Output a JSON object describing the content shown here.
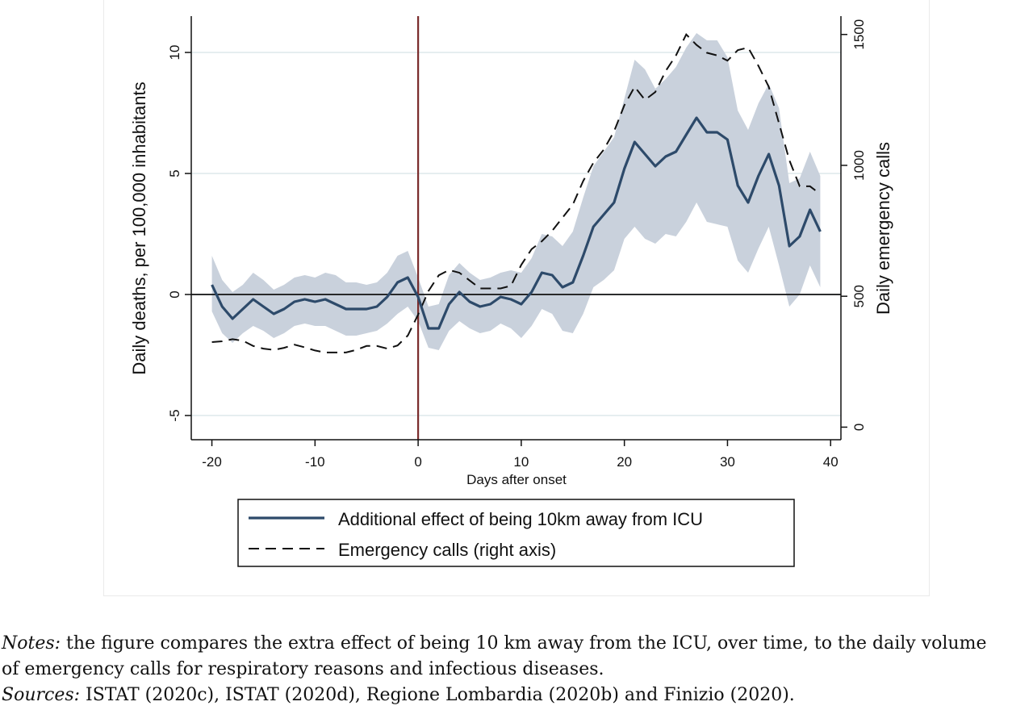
{
  "chart_data": {
    "type": "line",
    "xlabel": "Days after onset",
    "ylabel_left": "Daily deaths, per 100,000 inhabitants",
    "ylabel_right": "Daily emergency calls",
    "xlim": [
      -22,
      41
    ],
    "ylim_left": [
      -6,
      11.5
    ],
    "ylim_right": [
      -48,
      1570
    ],
    "x_ticks": [
      -20,
      -10,
      0,
      10,
      20,
      30,
      40
    ],
    "x_tick_labels": [
      "-20",
      "-10",
      "0",
      "10",
      "20",
      "30",
      "40"
    ],
    "y_left_ticks": [
      -5,
      0,
      5,
      10
    ],
    "y_left_tick_labels": [
      "-5",
      "0",
      "5",
      "10"
    ],
    "y_right_ticks": [
      0,
      500,
      1000,
      1500
    ],
    "y_right_tick_labels": [
      "0",
      "500",
      "1000",
      "1500"
    ],
    "grid": true,
    "vertical_line_at_x": 0,
    "horizontal_line_at_y": 0,
    "legend_position": "bottom",
    "legend": [
      "Additional effect of being 10km away from ICU",
      "Emergency calls (right axis)"
    ],
    "colors": {
      "effect_line": "#2d4a6a",
      "ci_band": "#c9d1dc",
      "calls_line": "#111111",
      "onset_line": "#7a2b2b",
      "grid": "#dde9ec"
    },
    "series": [
      {
        "name": "Additional effect of being 10km away from ICU",
        "axis": "left",
        "style": "solid",
        "x": [
          -20,
          -19,
          -18,
          -17,
          -16,
          -15,
          -14,
          -13,
          -12,
          -11,
          -10,
          -9,
          -8,
          -7,
          -6,
          -5,
          -4,
          -3,
          -2,
          -1,
          0,
          1,
          2,
          3,
          4,
          5,
          6,
          7,
          8,
          9,
          10,
          11,
          12,
          13,
          14,
          15,
          16,
          17,
          18,
          19,
          20,
          21,
          22,
          23,
          24,
          25,
          26,
          27,
          28,
          29,
          30,
          31,
          32,
          33,
          34,
          35,
          36,
          37,
          38,
          39
        ],
        "values": [
          0.4,
          -0.5,
          -1.0,
          -0.6,
          -0.2,
          -0.5,
          -0.8,
          -0.6,
          -0.3,
          -0.2,
          -0.3,
          -0.2,
          -0.4,
          -0.6,
          -0.6,
          -0.6,
          -0.5,
          -0.1,
          0.5,
          0.7,
          -0.1,
          -1.4,
          -1.4,
          -0.4,
          0.1,
          -0.3,
          -0.5,
          -0.4,
          -0.1,
          -0.2,
          -0.4,
          0.1,
          0.9,
          0.8,
          0.3,
          0.5,
          1.6,
          2.8,
          3.3,
          3.8,
          5.2,
          6.3,
          5.8,
          5.3,
          5.7,
          5.9,
          6.6,
          7.3,
          6.7,
          6.7,
          6.4,
          4.5,
          3.8,
          4.9,
          5.8,
          4.5,
          2.0,
          2.4,
          3.5,
          2.6
        ],
        "ci_lower": [
          -0.7,
          -1.6,
          -2.0,
          -1.6,
          -1.3,
          -1.5,
          -1.8,
          -1.6,
          -1.3,
          -1.2,
          -1.3,
          -1.3,
          -1.5,
          -1.7,
          -1.7,
          -1.6,
          -1.5,
          -1.2,
          -0.8,
          -0.5,
          -1.1,
          -2.2,
          -2.3,
          -1.5,
          -1.1,
          -1.4,
          -1.6,
          -1.5,
          -1.2,
          -1.4,
          -1.8,
          -1.3,
          -0.6,
          -0.8,
          -1.5,
          -1.6,
          -0.8,
          0.3,
          0.6,
          1.0,
          2.3,
          2.8,
          2.3,
          2.1,
          2.5,
          2.4,
          3.0,
          3.8,
          3.0,
          2.9,
          2.8,
          1.4,
          0.9,
          1.9,
          2.8,
          1.2,
          -0.5,
          0.0,
          1.2,
          0.3
        ],
        "ci_upper": [
          1.6,
          0.6,
          0.1,
          0.4,
          0.9,
          0.6,
          0.2,
          0.4,
          0.7,
          0.8,
          0.7,
          0.9,
          0.8,
          0.5,
          0.5,
          0.4,
          0.5,
          0.9,
          1.6,
          1.8,
          0.7,
          -0.5,
          -0.4,
          0.8,
          1.3,
          0.9,
          0.6,
          0.7,
          0.9,
          1.0,
          0.9,
          1.5,
          2.5,
          2.4,
          2.0,
          2.6,
          4.0,
          5.3,
          5.9,
          6.5,
          8.1,
          9.7,
          9.3,
          8.5,
          8.9,
          9.4,
          10.2,
          10.8,
          10.5,
          10.5,
          9.8,
          7.6,
          6.8,
          7.9,
          8.7,
          7.7,
          4.6,
          4.8,
          5.9,
          4.9
        ]
      },
      {
        "name": "Emergency calls (right axis)",
        "axis": "right",
        "style": "dashed",
        "x": [
          -20,
          -19,
          -18,
          -17,
          -16,
          -15,
          -14,
          -13,
          -12,
          -11,
          -10,
          -9,
          -8,
          -7,
          -6,
          -5,
          -4,
          -3,
          -2,
          -1,
          0,
          1,
          2,
          3,
          4,
          5,
          6,
          7,
          8,
          9,
          10,
          11,
          12,
          13,
          14,
          15,
          16,
          17,
          18,
          19,
          20,
          21,
          22,
          23,
          24,
          25,
          26,
          27,
          28,
          29,
          30,
          31,
          32,
          33,
          34,
          35,
          36,
          37,
          38,
          39
        ],
        "values": [
          325,
          328,
          336,
          330,
          310,
          300,
          295,
          303,
          315,
          305,
          293,
          285,
          285,
          285,
          295,
          310,
          310,
          300,
          312,
          350,
          430,
          520,
          580,
          600,
          590,
          560,
          530,
          530,
          530,
          540,
          620,
          680,
          710,
          750,
          800,
          850,
          940,
          1010,
          1060,
          1130,
          1230,
          1300,
          1250,
          1280,
          1360,
          1420,
          1500,
          1460,
          1430,
          1420,
          1400,
          1440,
          1450,
          1380,
          1300,
          1160,
          1020,
          920,
          920,
          890
        ]
      }
    ]
  },
  "notes": {
    "notes_label": "Notes:",
    "notes_text_1": " the figure compares the extra effect of being 10 km away from the ICU, over time, to the daily volume",
    "notes_text_2": "of emergency calls for respiratory reasons and infectious diseases.",
    "sources_label": "Sources:",
    "sources_text": " ISTAT (2020c), ISTAT (2020d), Regione Lombardia (2020b) and Finizio (2020)."
  }
}
